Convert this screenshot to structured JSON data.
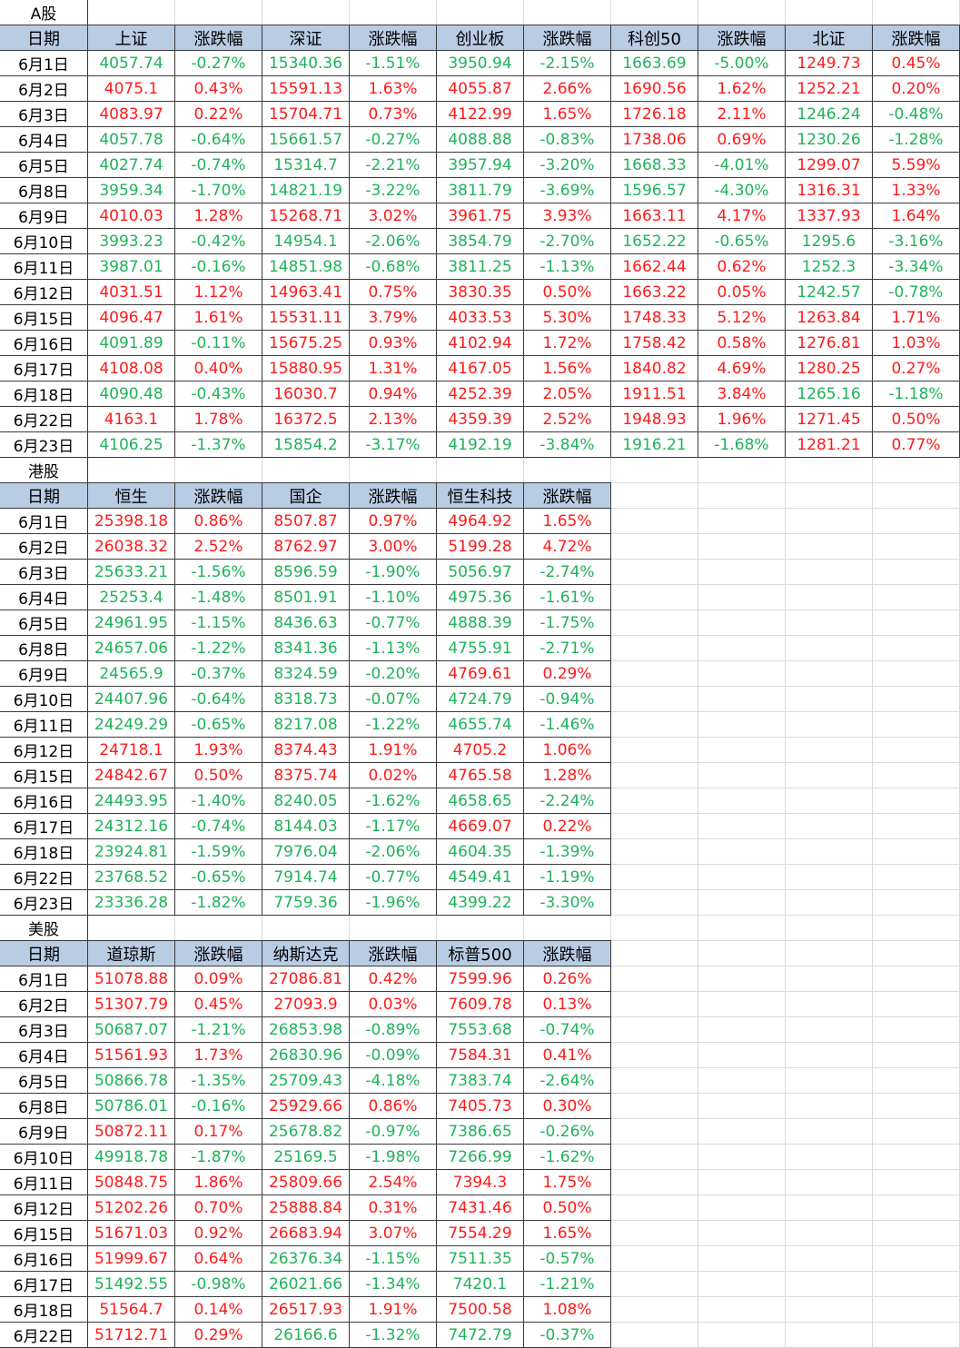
{
  "sections": [
    {
      "title": "A股",
      "headers": [
        "日期",
        "上证",
        "涨跌幅",
        "深证",
        "涨跌幅",
        "创业板",
        "涨跌幅",
        "科创50",
        "涨跌幅",
        "北证",
        "涨跌幅"
      ],
      "rows": [
        [
          "6月1日",
          "4057.74",
          "-0.27%",
          "15340.36",
          "-1.51%",
          "3950.94",
          "-2.15%",
          "1663.69",
          "-5.00%",
          "1249.73",
          "0.45%"
        ],
        [
          "6月2日",
          "4075.1",
          "0.43%",
          "15591.13",
          "1.63%",
          "4055.87",
          "2.66%",
          "1690.56",
          "1.62%",
          "1252.21",
          "0.20%"
        ],
        [
          "6月3日",
          "4083.97",
          "0.22%",
          "15704.71",
          "0.73%",
          "4122.99",
          "1.65%",
          "1726.18",
          "2.11%",
          "1246.24",
          "-0.48%"
        ],
        [
          "6月4日",
          "4057.78",
          "-0.64%",
          "15661.57",
          "-0.27%",
          "4088.88",
          "-0.83%",
          "1738.06",
          "0.69%",
          "1230.26",
          "-1.28%"
        ],
        [
          "6月5日",
          "4027.74",
          "-0.74%",
          "15314.7",
          "-2.21%",
          "3957.94",
          "-3.20%",
          "1668.33",
          "-4.01%",
          "1299.07",
          "5.59%"
        ],
        [
          "6月8日",
          "3959.34",
          "-1.70%",
          "14821.19",
          "-3.22%",
          "3811.79",
          "-3.69%",
          "1596.57",
          "-4.30%",
          "1316.31",
          "1.33%"
        ],
        [
          "6月9日",
          "4010.03",
          "1.28%",
          "15268.71",
          "3.02%",
          "3961.75",
          "3.93%",
          "1663.11",
          "4.17%",
          "1337.93",
          "1.64%"
        ],
        [
          "6月10日",
          "3993.23",
          "-0.42%",
          "14954.1",
          "-2.06%",
          "3854.79",
          "-2.70%",
          "1652.22",
          "-0.65%",
          "1295.6",
          "-3.16%"
        ],
        [
          "6月11日",
          "3987.01",
          "-0.16%",
          "14851.98",
          "-0.68%",
          "3811.25",
          "-1.13%",
          "1662.44",
          "0.62%",
          "1252.3",
          "-3.34%"
        ],
        [
          "6月12日",
          "4031.51",
          "1.12%",
          "14963.41",
          "0.75%",
          "3830.35",
          "0.50%",
          "1663.22",
          "0.05%",
          "1242.57",
          "-0.78%"
        ],
        [
          "6月15日",
          "4096.47",
          "1.61%",
          "15531.11",
          "3.79%",
          "4033.53",
          "5.30%",
          "1748.33",
          "5.12%",
          "1263.84",
          "1.71%"
        ],
        [
          "6月16日",
          "4091.89",
          "-0.11%",
          "15675.25",
          "0.93%",
          "4102.94",
          "1.72%",
          "1758.42",
          "0.58%",
          "1276.81",
          "1.03%"
        ],
        [
          "6月17日",
          "4108.08",
          "0.40%",
          "15880.95",
          "1.31%",
          "4167.05",
          "1.56%",
          "1840.82",
          "4.69%",
          "1280.25",
          "0.27%"
        ],
        [
          "6月18日",
          "4090.48",
          "-0.43%",
          "16030.7",
          "0.94%",
          "4252.39",
          "2.05%",
          "1911.51",
          "3.84%",
          "1265.16",
          "-1.18%"
        ],
        [
          "6月22日",
          "4163.1",
          "1.78%",
          "16372.5",
          "2.13%",
          "4359.39",
          "2.52%",
          "1948.93",
          "1.96%",
          "1271.45",
          "0.50%"
        ],
        [
          "6月23日",
          "4106.25",
          "-1.37%",
          "15854.2",
          "-3.17%",
          "4192.19",
          "-3.84%",
          "1916.21",
          "-1.68%",
          "1281.21",
          "0.77%"
        ]
      ]
    },
    {
      "title": "港股",
      "headers": [
        "日期",
        "恒生",
        "涨跌幅",
        "国企",
        "涨跌幅",
        "恒生科技",
        "涨跌幅"
      ],
      "rows": [
        [
          "6月1日",
          "25398.18",
          "0.86%",
          "8507.87",
          "0.97%",
          "4964.92",
          "1.65%"
        ],
        [
          "6月2日",
          "26038.32",
          "2.52%",
          "8762.97",
          "3.00%",
          "5199.28",
          "4.72%"
        ],
        [
          "6月3日",
          "25633.21",
          "-1.56%",
          "8596.59",
          "-1.90%",
          "5056.97",
          "-2.74%"
        ],
        [
          "6月4日",
          "25253.4",
          "-1.48%",
          "8501.91",
          "-1.10%",
          "4975.36",
          "-1.61%"
        ],
        [
          "6月5日",
          "24961.95",
          "-1.15%",
          "8436.63",
          "-0.77%",
          "4888.39",
          "-1.75%"
        ],
        [
          "6月8日",
          "24657.06",
          "-1.22%",
          "8341.36",
          "-1.13%",
          "4755.91",
          "-2.71%"
        ],
        [
          "6月9日",
          "24565.9",
          "-0.37%",
          "8324.59",
          "-0.20%",
          "4769.61",
          "0.29%"
        ],
        [
          "6月10日",
          "24407.96",
          "-0.64%",
          "8318.73",
          "-0.07%",
          "4724.79",
          "-0.94%"
        ],
        [
          "6月11日",
          "24249.29",
          "-0.65%",
          "8217.08",
          "-1.22%",
          "4655.74",
          "-1.46%"
        ],
        [
          "6月12日",
          "24718.1",
          "1.93%",
          "8374.43",
          "1.91%",
          "4705.2",
          "1.06%"
        ],
        [
          "6月15日",
          "24842.67",
          "0.50%",
          "8375.74",
          "0.02%",
          "4765.58",
          "1.28%"
        ],
        [
          "6月16日",
          "24493.95",
          "-1.40%",
          "8240.05",
          "-1.62%",
          "4658.65",
          "-2.24%"
        ],
        [
          "6月17日",
          "24312.16",
          "-0.74%",
          "8144.03",
          "-1.17%",
          "4669.07",
          "0.22%"
        ],
        [
          "6月18日",
          "23924.81",
          "-1.59%",
          "7976.04",
          "-2.06%",
          "4604.35",
          "-1.39%"
        ],
        [
          "6月22日",
          "23768.52",
          "-0.65%",
          "7914.74",
          "-0.77%",
          "4549.41",
          "-1.19%"
        ],
        [
          "6月23日",
          "23336.28",
          "-1.82%",
          "7759.36",
          "-1.96%",
          "4399.22",
          "-3.30%"
        ]
      ]
    },
    {
      "title": "美股",
      "headers": [
        "日期",
        "道琼斯",
        "涨跌幅",
        "纳斯达克",
        "涨跌幅",
        "标普500",
        "涨跌幅"
      ],
      "rows": [
        [
          "6月1日",
          "51078.88",
          "0.09%",
          "27086.81",
          "0.42%",
          "7599.96",
          "0.26%"
        ],
        [
          "6月2日",
          "51307.79",
          "0.45%",
          "27093.9",
          "0.03%",
          "7609.78",
          "0.13%"
        ],
        [
          "6月3日",
          "50687.07",
          "-1.21%",
          "26853.98",
          "-0.89%",
          "7553.68",
          "-0.74%"
        ],
        [
          "6月4日",
          "51561.93",
          "1.73%",
          "26830.96",
          "-0.09%",
          "7584.31",
          "0.41%"
        ],
        [
          "6月5日",
          "50866.78",
          "-1.35%",
          "25709.43",
          "-4.18%",
          "7383.74",
          "-2.64%"
        ],
        [
          "6月8日",
          "50786.01",
          "-0.16%",
          "25929.66",
          "0.86%",
          "7405.73",
          "0.30%"
        ],
        [
          "6月9日",
          "50872.11",
          "0.17%",
          "25678.82",
          "-0.97%",
          "7386.65",
          "-0.26%"
        ],
        [
          "6月10日",
          "49918.78",
          "-1.87%",
          "25169.5",
          "-1.98%",
          "7266.99",
          "-1.62%"
        ],
        [
          "6月11日",
          "50848.75",
          "1.86%",
          "25809.66",
          "2.54%",
          "7394.3",
          "1.75%"
        ],
        [
          "6月12日",
          "51202.26",
          "0.70%",
          "25888.84",
          "0.31%",
          "7431.46",
          "0.50%"
        ],
        [
          "6月15日",
          "51671.03",
          "0.92%",
          "26683.94",
          "3.07%",
          "7554.29",
          "1.65%"
        ],
        [
          "6月16日",
          "51999.67",
          "0.64%",
          "26376.34",
          "-1.15%",
          "7511.35",
          "-0.57%"
        ],
        [
          "6月17日",
          "51492.55",
          "-0.98%",
          "26021.66",
          "-1.34%",
          "7420.1",
          "-1.21%"
        ],
        [
          "6月18日",
          "51564.7",
          "0.14%",
          "26517.93",
          "1.91%",
          "7500.58",
          "1.08%"
        ],
        [
          "6月22日",
          "51712.71",
          "0.29%",
          "26166.6",
          "-1.32%",
          "7472.79",
          "-0.37%"
        ]
      ]
    }
  ]
}
